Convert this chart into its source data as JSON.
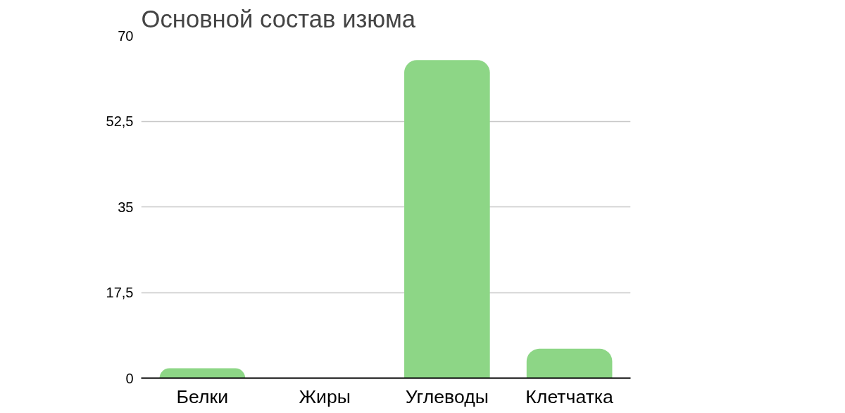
{
  "chart_data": {
    "type": "bar",
    "title": "Основной состав изюма",
    "categories": [
      "Белки",
      "Жиры",
      "Углеводы",
      "Клетчатка"
    ],
    "values": [
      2,
      0,
      65,
      6
    ],
    "color": "#8dd686",
    "ylim": [
      0,
      70
    ],
    "yticks": [
      0,
      {
        "value": 17.5,
        "label": "17,5"
      },
      35,
      {
        "value": 52.5,
        "label": "52,5"
      },
      70
    ],
    "grid": "y"
  }
}
